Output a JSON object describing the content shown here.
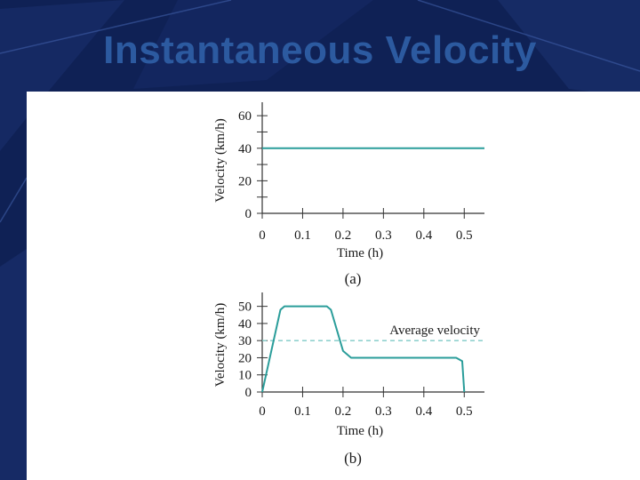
{
  "slide": {
    "title": "Instantaneous Velocity",
    "colors": {
      "background": "#0f2155",
      "title": "#2c5aa0",
      "panel": "#ffffff",
      "curve": "#2a9d9a"
    }
  },
  "chart_data": [
    {
      "type": "line",
      "caption": "(a)",
      "xlabel": "Time (h)",
      "ylabel": "Velocity (km/h)",
      "xlim": [
        0,
        0.55
      ],
      "ylim": [
        0,
        65
      ],
      "x_ticks": [
        "0",
        "0.1",
        "0.2",
        "0.3",
        "0.4",
        "0.5"
      ],
      "y_ticks": [
        "0",
        "20",
        "40",
        "60"
      ],
      "series": [
        {
          "x": [
            0,
            0.55
          ],
          "y": [
            40,
            40
          ]
        }
      ]
    },
    {
      "type": "line",
      "caption": "(b)",
      "xlabel": "Time (h)",
      "ylabel": "Velocity (km/h)",
      "xlim": [
        0,
        0.55
      ],
      "ylim": [
        0,
        55
      ],
      "x_ticks": [
        "0",
        "0.1",
        "0.2",
        "0.3",
        "0.4",
        "0.5"
      ],
      "y_ticks": [
        "0",
        "10",
        "20",
        "30",
        "40",
        "50"
      ],
      "series": [
        {
          "x": [
            0,
            0.045,
            0.055,
            0.16,
            0.17,
            0.2,
            0.22,
            0.48,
            0.495,
            0.5
          ],
          "y": [
            0,
            48,
            50,
            50,
            48,
            24,
            20,
            20,
            18,
            0
          ]
        }
      ],
      "reference_line": {
        "label": "Average velocity",
        "y": 30
      }
    }
  ]
}
